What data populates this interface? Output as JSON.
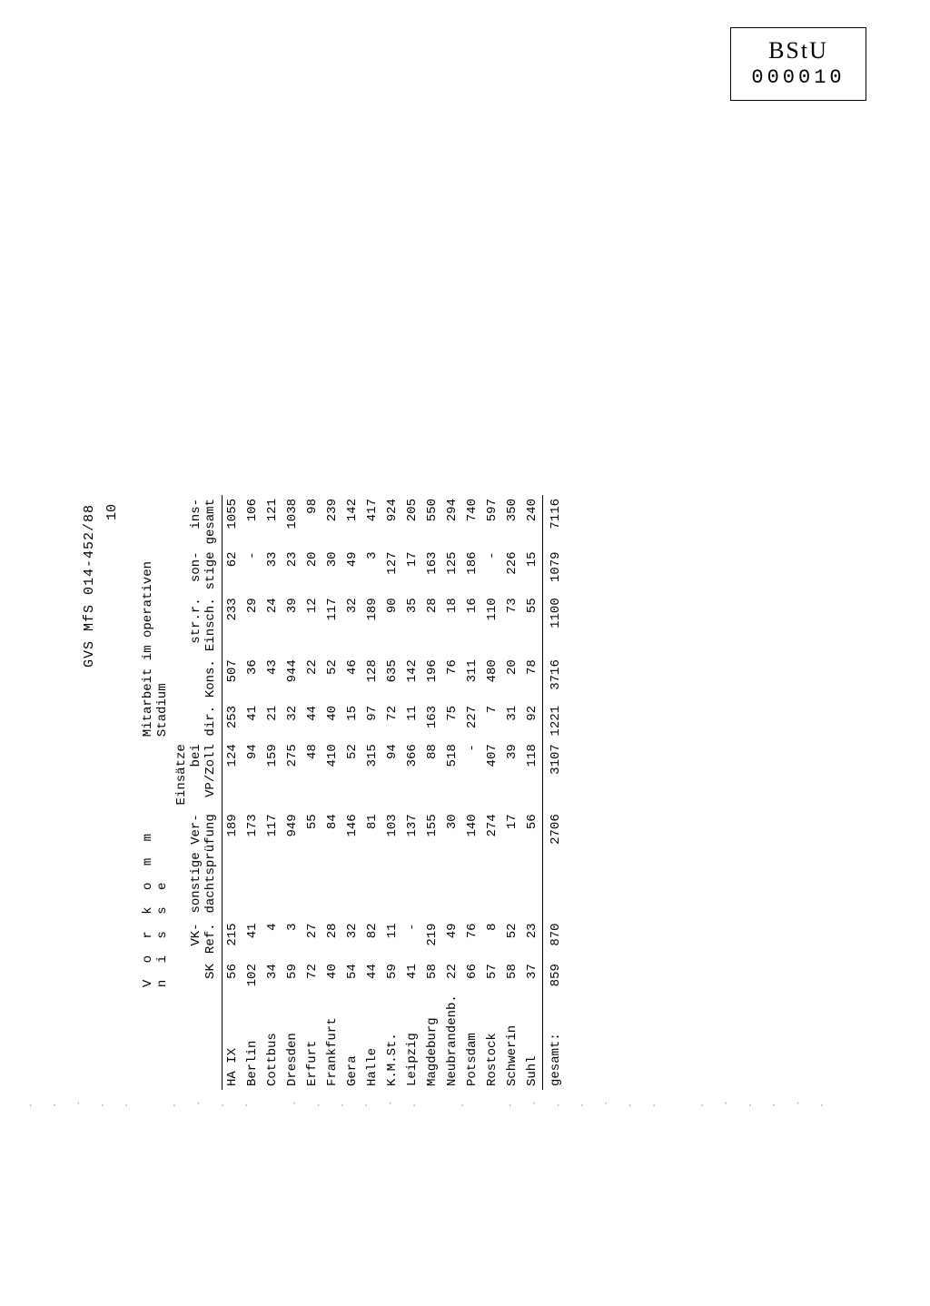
{
  "document": {
    "header_ref": "GVS MfS 014-452/88",
    "page_number": "10"
  },
  "stamp": {
    "line1": "BStU",
    "line2": "000010"
  },
  "table": {
    "super_headers": {
      "vorkommnisse": "V o r k o m m n i s s e",
      "mitarbeit": "Mitarbeit im operativen Stadium"
    },
    "columns": [
      "",
      "SK",
      "VK-Ref.",
      "sonstige Ver-\ndachtsprüfung",
      "Einsätze bei\nVP/Zoll",
      "dir.",
      "Kons.",
      "str.r.\nEinsch.",
      "son-\nstige",
      "ins-\ngesamt"
    ],
    "rows": [
      {
        "label": "HA IX",
        "v": [
          "56",
          "215",
          "189",
          "124",
          "253",
          "507",
          "233",
          "62",
          "1055"
        ]
      },
      {
        "label": "Berlin",
        "v": [
          "102",
          "41",
          "173",
          "94",
          "41",
          "36",
          "29",
          "-",
          "106"
        ]
      },
      {
        "label": "Cottbus",
        "v": [
          "34",
          "4",
          "117",
          "159",
          "21",
          "43",
          "24",
          "33",
          "121"
        ]
      },
      {
        "label": "Dresden",
        "v": [
          "59",
          "3",
          "949",
          "275",
          "32",
          "944",
          "39",
          "23",
          "1038"
        ]
      },
      {
        "label": "Erfurt",
        "v": [
          "72",
          "27",
          "55",
          "48",
          "44",
          "22",
          "12",
          "20",
          "98"
        ]
      },
      {
        "label": "Frankfurt",
        "v": [
          "40",
          "28",
          "84",
          "410",
          "40",
          "52",
          "117",
          "30",
          "239"
        ]
      },
      {
        "label": "Gera",
        "v": [
          "54",
          "32",
          "146",
          "52",
          "15",
          "46",
          "32",
          "49",
          "142"
        ]
      },
      {
        "label": "Halle",
        "v": [
          "44",
          "82",
          "81",
          "315",
          "97",
          "128",
          "189",
          "3",
          "417"
        ]
      },
      {
        "label": "K.M.St.",
        "v": [
          "59",
          "11",
          "103",
          "94",
          "72",
          "635",
          "90",
          "127",
          "924"
        ]
      },
      {
        "label": "Leipzig",
        "v": [
          "41",
          "-",
          "137",
          "366",
          "11",
          "142",
          "35",
          "17",
          "205"
        ]
      },
      {
        "label": "Magdeburg",
        "v": [
          "58",
          "219",
          "155",
          "88",
          "163",
          "196",
          "28",
          "163",
          "550"
        ]
      },
      {
        "label": "Neubrandenb.",
        "v": [
          "22",
          "49",
          "30",
          "518",
          "75",
          "76",
          "18",
          "125",
          "294"
        ]
      },
      {
        "label": "Potsdam",
        "v": [
          "66",
          "76",
          "140",
          "-",
          "227",
          "311",
          "16",
          "186",
          "740"
        ]
      },
      {
        "label": "Rostock",
        "v": [
          "57",
          "8",
          "274",
          "407",
          "7",
          "480",
          "110",
          "-",
          "597"
        ]
      },
      {
        "label": "Schwerin",
        "v": [
          "58",
          "52",
          "17",
          "39",
          "31",
          "20",
          "73",
          "226",
          "350"
        ]
      },
      {
        "label": "Suhl",
        "v": [
          "37",
          "23",
          "56",
          "118",
          "92",
          "78",
          "55",
          "15",
          "240"
        ]
      }
    ],
    "totals": {
      "label": "gesamt:",
      "v": [
        "859",
        "870",
        "2706",
        "3107",
        "1221",
        "3716",
        "1100",
        "1079",
        "7116"
      ]
    }
  }
}
